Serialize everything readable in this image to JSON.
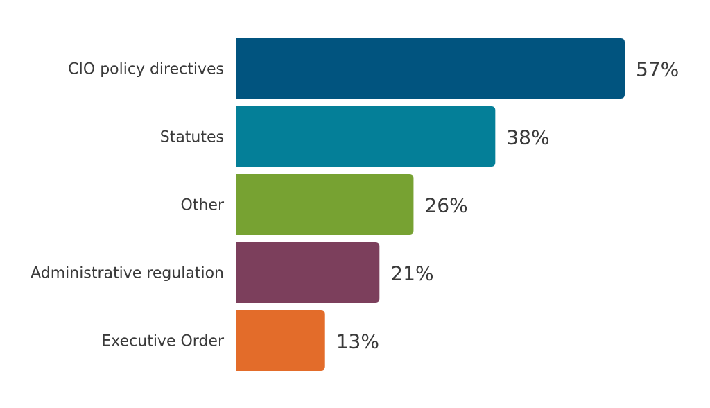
{
  "chart_data": {
    "type": "bar",
    "orientation": "horizontal",
    "categories": [
      "CIO policy directives",
      "Statutes",
      "Other",
      "Administrative regulation",
      "Executive Order"
    ],
    "values": [
      57,
      38,
      26,
      21,
      13
    ],
    "value_labels": [
      "57%",
      "38%",
      "26%",
      "21%",
      "13%"
    ],
    "unit": "%",
    "colors": [
      "#01547f",
      "#047f98",
      "#77a232",
      "#7c3f5c",
      "#e36c2a"
    ],
    "xlim": [
      0,
      57
    ],
    "grid": false,
    "legend": "none"
  }
}
